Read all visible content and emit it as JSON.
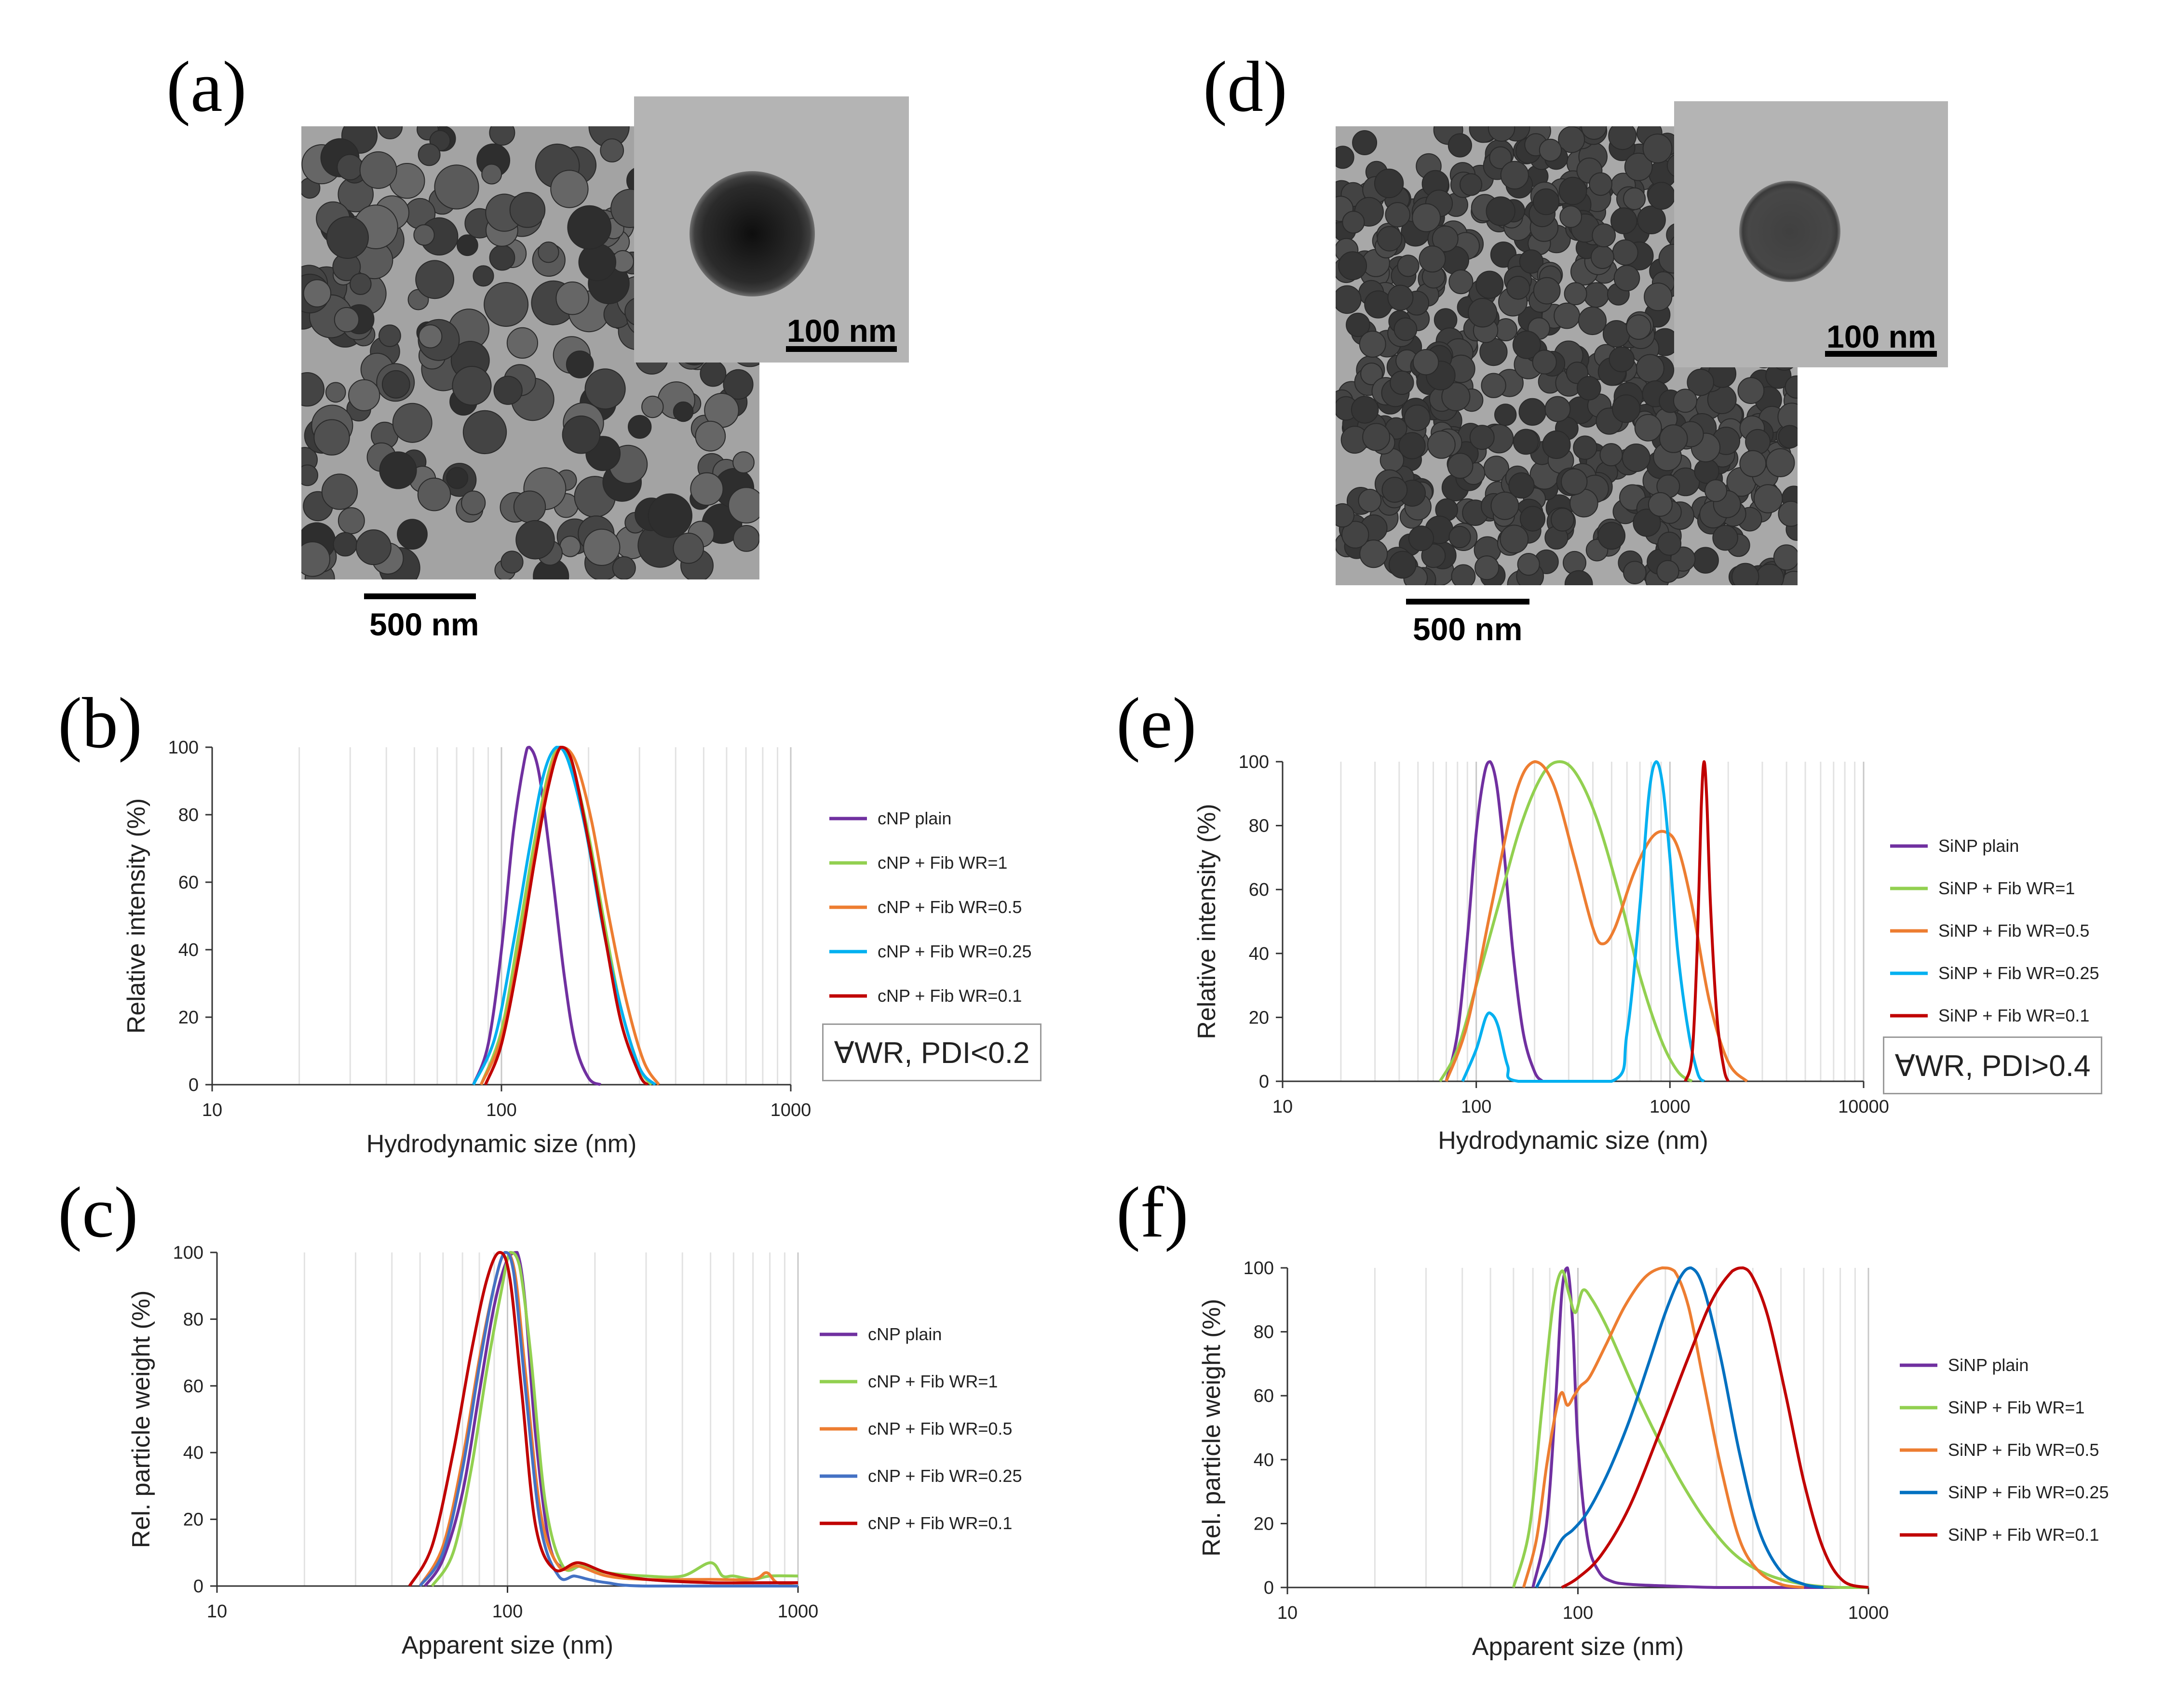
{
  "panels": {
    "a": "(a)",
    "b": "(b)",
    "c": "(c)",
    "d": "(d)",
    "e": "(e)",
    "f": "(f)"
  },
  "tem_a": {
    "main_scale": "500 nm",
    "inset_scale": "100 nm"
  },
  "tem_d": {
    "main_scale": "500 nm",
    "inset_scale": "100 nm"
  },
  "pdi_b": "∀WR, PDI<0.2",
  "pdi_e": "∀WR, PDI>0.4",
  "colors": {
    "purple": "#7030a0",
    "green": "#92d050",
    "orange": "#ed7d31",
    "cyan": "#00b0f0",
    "blue_c": "#4472c4",
    "blue_f": "#0070c0",
    "red": "#c00000"
  },
  "chart_data": [
    {
      "id": "b",
      "type": "line",
      "xscale": "log",
      "xlabel": "Hydrodynamic size (nm)",
      "ylabel": "Relative intensity (%)",
      "xlim": [
        10,
        1000
      ],
      "ylim": [
        0,
        100
      ],
      "xticks": [
        "10",
        "100",
        "1000"
      ],
      "yticks": [
        "0",
        "20",
        "40",
        "60",
        "80",
        "100"
      ],
      "series": [
        {
          "name": "cNP plain",
          "color": "#7030a0",
          "x": [
            80,
            90,
            100,
            110,
            120,
            125,
            135,
            150,
            165,
            180,
            200,
            220
          ],
          "y": [
            0,
            12,
            40,
            75,
            96,
            100,
            92,
            62,
            32,
            12,
            2,
            0
          ]
        },
        {
          "name": "cNP + Fib WR=1",
          "color": "#92d050",
          "x": [
            85,
            100,
            115,
            130,
            145,
            158,
            175,
            200,
            230,
            260,
            300,
            330
          ],
          "y": [
            0,
            16,
            45,
            72,
            92,
            100,
            95,
            74,
            45,
            22,
            5,
            0
          ]
        },
        {
          "name": "cNP + Fib WR=0.5",
          "color": "#ed7d31",
          "x": [
            85,
            100,
            115,
            130,
            145,
            160,
            180,
            205,
            235,
            270,
            310,
            350
          ],
          "y": [
            0,
            14,
            40,
            68,
            90,
            100,
            96,
            78,
            50,
            25,
            7,
            0
          ]
        },
        {
          "name": "cNP + Fib WR=0.25",
          "color": "#00b0f0",
          "x": [
            80,
            95,
            110,
            125,
            140,
            155,
            170,
            195,
            225,
            260,
            300,
            340
          ],
          "y": [
            0,
            14,
            42,
            70,
            92,
            100,
            96,
            76,
            46,
            22,
            5,
            0
          ]
        },
        {
          "name": "cNP + Fib WR=0.1",
          "color": "#c00000",
          "x": [
            88,
            100,
            115,
            130,
            145,
            160,
            175,
            200,
            230,
            260,
            300,
            320
          ],
          "y": [
            0,
            12,
            38,
            66,
            88,
            100,
            96,
            72,
            42,
            18,
            3,
            0
          ]
        }
      ]
    },
    {
      "id": "c",
      "type": "line",
      "xscale": "log",
      "xlabel": "Apparent size (nm)",
      "ylabel": "Rel. particle weight (%)",
      "xlim": [
        10,
        1000
      ],
      "ylim": [
        0,
        100
      ],
      "xticks": [
        "10",
        "100",
        "1000"
      ],
      "yticks": [
        "0",
        "20",
        "40",
        "60",
        "80",
        "100"
      ],
      "series": [
        {
          "name": "cNP plain",
          "color": "#7030a0",
          "x": [
            52,
            60,
            70,
            80,
            90,
            100,
            108,
            115,
            125,
            140,
            160,
            180,
            220,
            300,
            500,
            1000
          ],
          "y": [
            0,
            8,
            28,
            58,
            84,
            98,
            100,
            85,
            45,
            12,
            5,
            6,
            4,
            2,
            1,
            1
          ]
        },
        {
          "name": "cNP + Fib WR=1",
          "color": "#92d050",
          "x": [
            55,
            65,
            75,
            85,
            95,
            102,
            110,
            120,
            135,
            155,
            180,
            220,
            300,
            400,
            500,
            550,
            600,
            700,
            800,
            1000
          ],
          "y": [
            0,
            10,
            35,
            65,
            88,
            100,
            96,
            70,
            25,
            6,
            6,
            4,
            3,
            3,
            7,
            3,
            3,
            2,
            3,
            3
          ]
        },
        {
          "name": "cNP + Fib WR=0.5",
          "color": "#ed7d31",
          "x": [
            50,
            60,
            70,
            80,
            90,
            98,
            106,
            115,
            130,
            150,
            175,
            220,
            300,
            500,
            700,
            780,
            850,
            1000
          ],
          "y": [
            0,
            12,
            38,
            68,
            90,
            100,
            94,
            65,
            22,
            6,
            6,
            3,
            2,
            2,
            2,
            4,
            1,
            1
          ]
        },
        {
          "name": "cNP + Fib WR=0.25",
          "color": "#4472c4",
          "x": [
            50,
            60,
            70,
            80,
            90,
            98,
            105,
            115,
            130,
            150,
            170,
            190,
            220,
            300,
            1000
          ],
          "y": [
            0,
            10,
            35,
            66,
            90,
            100,
            94,
            60,
            18,
            3,
            3,
            2,
            1,
            0,
            0
          ]
        },
        {
          "name": "cNP + Fib WR=0.1",
          "color": "#c00000",
          "x": [
            46,
            55,
            65,
            75,
            85,
            94,
            102,
            112,
            125,
            145,
            175,
            220,
            300,
            500,
            700,
            1000
          ],
          "y": [
            0,
            12,
            40,
            70,
            92,
            100,
            92,
            58,
            18,
            5,
            7,
            4,
            2,
            1,
            1,
            1
          ]
        }
      ]
    },
    {
      "id": "e",
      "type": "line",
      "xscale": "log",
      "xlabel": "Hydrodynamic size (nm)",
      "ylabel": "Relative intensity (%)",
      "xlim": [
        10,
        10000
      ],
      "ylim": [
        0,
        100
      ],
      "xticks": [
        "10",
        "100",
        "1000",
        "10000"
      ],
      "yticks": [
        "0",
        "20",
        "40",
        "60",
        "80",
        "100"
      ],
      "series": [
        {
          "name": "SiNP plain",
          "color": "#7030a0",
          "x": [
            70,
            80,
            90,
            100,
            110,
            118,
            128,
            140,
            155,
            175,
            200,
            220
          ],
          "y": [
            0,
            15,
            45,
            78,
            96,
            100,
            92,
            70,
            40,
            15,
            3,
            0
          ]
        },
        {
          "name": "SiNP + Fib WR=1",
          "color": "#92d050",
          "x": [
            65,
            80,
            100,
            130,
            170,
            220,
            270,
            330,
            420,
            550,
            700,
            900,
            1100,
            1300
          ],
          "y": [
            0,
            10,
            30,
            55,
            80,
            96,
            100,
            96,
            82,
            58,
            33,
            13,
            3,
            0
          ]
        },
        {
          "name": "SiNP + Fib WR=0.5",
          "color": "#ed7d31",
          "x": [
            70,
            90,
            120,
            160,
            200,
            250,
            320,
            400,
            450,
            520,
            650,
            800,
            950,
            1100,
            1300,
            1600,
            2000,
            2500
          ],
          "y": [
            0,
            18,
            55,
            90,
            100,
            93,
            70,
            48,
            43,
            48,
            65,
            76,
            78,
            73,
            55,
            25,
            6,
            0
          ]
        },
        {
          "name": "SiNP + Fib WR=0.25",
          "color": "#00b0f0",
          "x": [
            85,
            100,
            112,
            120,
            130,
            145,
            165,
            500,
            600,
            700,
            780,
            850,
            920,
            1000,
            1100,
            1250,
            1400,
            1500
          ],
          "y": [
            0,
            10,
            20,
            21,
            17,
            5,
            0,
            0,
            15,
            55,
            90,
            100,
            92,
            70,
            40,
            15,
            2,
            0
          ]
        },
        {
          "name": "SiNP + Fib WR=0.1",
          "color": "#c00000",
          "x": [
            1200,
            1300,
            1380,
            1450,
            1500,
            1550,
            1620,
            1750,
            1900,
            2000
          ],
          "y": [
            0,
            8,
            40,
            85,
            100,
            88,
            55,
            20,
            4,
            0
          ]
        }
      ]
    },
    {
      "id": "f",
      "type": "line",
      "xscale": "log",
      "xlabel": "Apparent size (nm)",
      "ylabel": "Rel. particle weight (%)",
      "xlim": [
        10,
        1000
      ],
      "ylim": [
        0,
        100
      ],
      "xticks": [
        "10",
        "100",
        "1000"
      ],
      "yticks": [
        "0",
        "20",
        "40",
        "60",
        "80",
        "100"
      ],
      "series": [
        {
          "name": "SiNP plain",
          "color": "#7030a0",
          "x": [
            70,
            78,
            84,
            88,
            92,
            96,
            100,
            108,
            118,
            130,
            150,
            200,
            300,
            500,
            1000
          ],
          "y": [
            0,
            20,
            60,
            92,
            100,
            82,
            45,
            15,
            5,
            2,
            1,
            0.5,
            0,
            0,
            0
          ]
        },
        {
          "name": "SiNP + Fib WR=1",
          "color": "#92d050",
          "x": [
            60,
            68,
            75,
            82,
            88,
            93,
            98,
            104,
            112,
            125,
            140,
            160,
            190,
            230,
            280,
            350,
            450,
            600,
            800,
            1000
          ],
          "y": [
            0,
            18,
            55,
            88,
            99,
            92,
            86,
            93,
            90,
            82,
            72,
            60,
            46,
            32,
            20,
            10,
            4,
            1,
            0,
            0
          ]
        },
        {
          "name": "SiNP + Fib WR=0.5",
          "color": "#ed7d31",
          "x": [
            65,
            72,
            78,
            84,
            88,
            92,
            97,
            102,
            110,
            125,
            145,
            170,
            195,
            215,
            240,
            270,
            310,
            360,
            420,
            500,
            600
          ],
          "y": [
            0,
            15,
            38,
            55,
            61,
            57,
            60,
            63,
            66,
            76,
            88,
            97,
            100,
            99,
            88,
            65,
            38,
            15,
            5,
            1,
            0
          ]
        },
        {
          "name": "SiNP + Fib WR=0.25",
          "color": "#0070c0",
          "x": [
            72,
            80,
            88,
            96,
            105,
            115,
            130,
            150,
            175,
            200,
            225,
            245,
            270,
            310,
            360,
            420,
            500,
            600,
            700
          ],
          "y": [
            0,
            8,
            15,
            18,
            22,
            28,
            38,
            52,
            70,
            86,
            97,
            100,
            94,
            72,
            42,
            18,
            5,
            1,
            0
          ]
        },
        {
          "name": "SiNP + Fib WR=0.1",
          "color": "#c00000",
          "x": [
            88,
            100,
            120,
            150,
            190,
            240,
            290,
            340,
            370,
            400,
            450,
            520,
            600,
            700,
            820,
            1000
          ],
          "y": [
            0,
            3,
            10,
            25,
            48,
            72,
            90,
            99,
            100,
            97,
            85,
            60,
            33,
            12,
            2,
            0
          ]
        }
      ]
    }
  ]
}
